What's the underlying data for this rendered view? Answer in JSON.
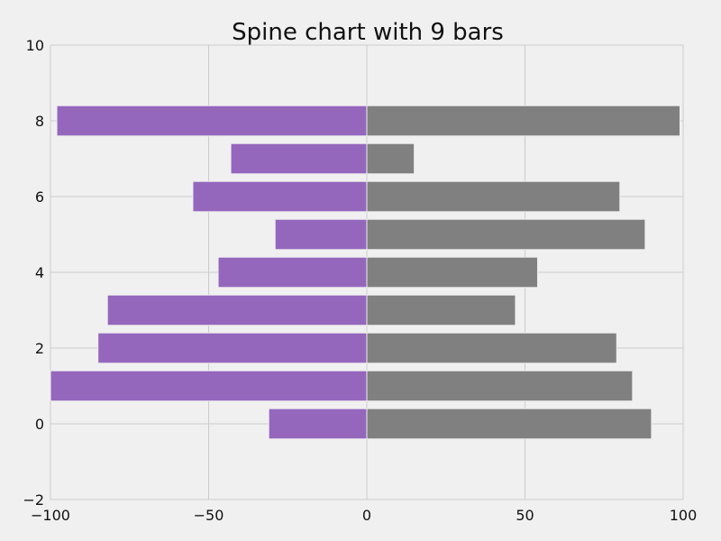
{
  "chart_data": {
    "type": "bar",
    "orientation": "horizontal",
    "title": "Spine chart with 9 bars",
    "xlabel": "",
    "ylabel": "",
    "xlim": [
      -100,
      100
    ],
    "ylim": [
      -2,
      10
    ],
    "x_ticks": [
      -100,
      -50,
      0,
      50,
      100
    ],
    "x_tick_labels": [
      "−100",
      "−50",
      "0",
      "50",
      "100"
    ],
    "y_ticks": [
      -2,
      0,
      2,
      4,
      6,
      8,
      10
    ],
    "y_tick_labels": [
      "−2",
      "0",
      "2",
      "4",
      "6",
      "8",
      "10"
    ],
    "grid": true,
    "categories": [
      0,
      1,
      2,
      3,
      4,
      5,
      6,
      7,
      8
    ],
    "series": [
      {
        "color": "#9467bd",
        "values": [
          -31,
          -100,
          -85,
          -82,
          -47,
          -29,
          -55,
          -43,
          -98
        ]
      },
      {
        "color": "#808080",
        "values": [
          90,
          84,
          79,
          47,
          54,
          88,
          80,
          15,
          99
        ]
      }
    ]
  }
}
